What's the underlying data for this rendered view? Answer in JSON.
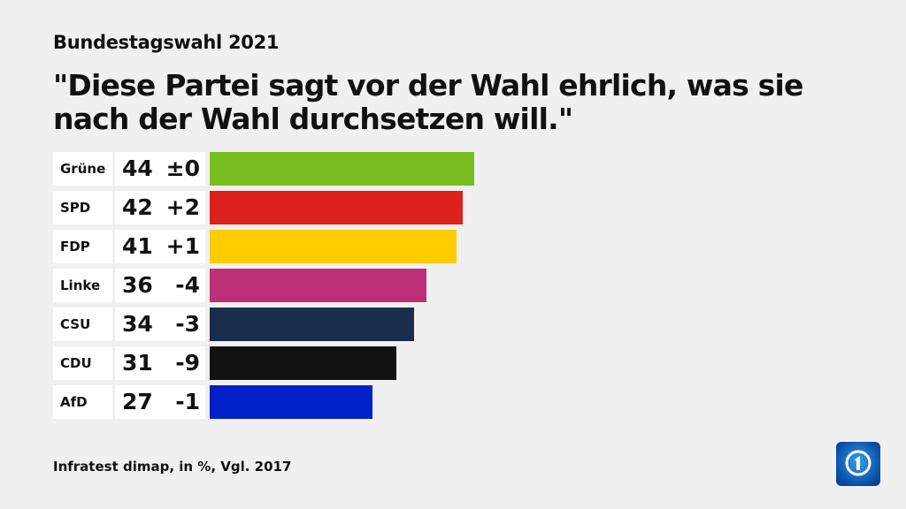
{
  "supertitle": "Bundestagswahl 2021",
  "title": "\"Diese Partei sagt vor der Wahl ehrlich, was sie nach der Wahl durchsetzen will.\"",
  "source": "Infratest dimap, in %, Vgl. 2017",
  "logo": "tagesschau-logo",
  "chart_data": {
    "type": "bar",
    "orientation": "horizontal",
    "categories": [
      "Grüne",
      "SPD",
      "FDP",
      "Linke",
      "CSU",
      "CDU",
      "AfD"
    ],
    "values": [
      44,
      42,
      41,
      36,
      34,
      31,
      27
    ],
    "changes": [
      "±0",
      "+2",
      "+1",
      "-4",
      "-3",
      "-9",
      "-1"
    ],
    "colors": [
      "#78be20",
      "#dc211d",
      "#ffcc00",
      "#be3075",
      "#1a2d4b",
      "#121212",
      "#0021c8"
    ],
    "unit": "%",
    "xlim": [
      0,
      100
    ]
  }
}
